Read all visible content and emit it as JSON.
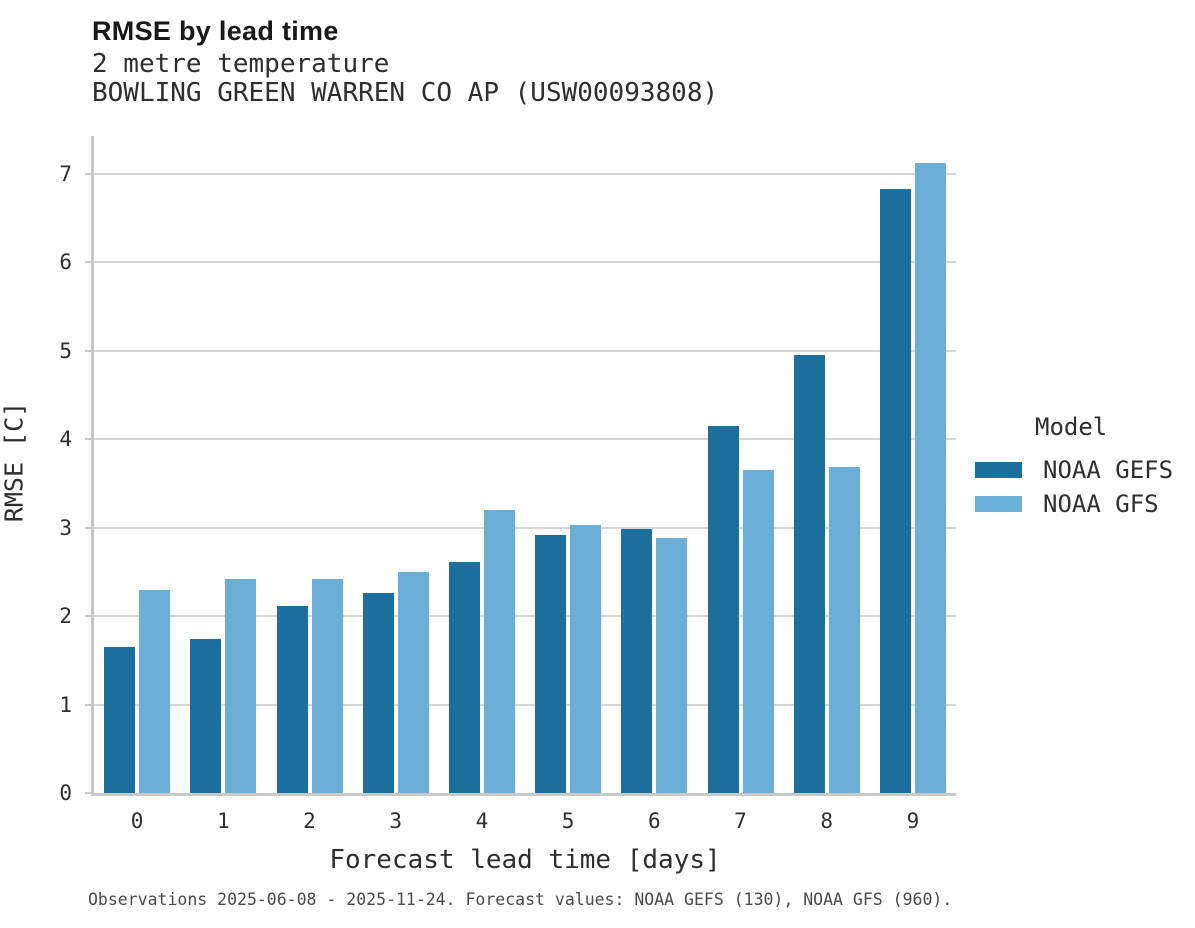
{
  "header": {
    "title": "RMSE by lead time",
    "subtitle_line1": "2 metre temperature",
    "subtitle_line2": "BOWLING GREEN WARREN CO AP (USW00093808)"
  },
  "chart_data": {
    "type": "bar",
    "title": "RMSE by lead time",
    "subtitle": [
      "2 metre temperature",
      "BOWLING GREEN WARREN CO AP (USW00093808)"
    ],
    "categories": [
      "0",
      "1",
      "2",
      "3",
      "4",
      "5",
      "6",
      "7",
      "8",
      "9"
    ],
    "series": [
      {
        "name": "NOAA GEFS",
        "color": "#1d6f9e",
        "values": [
          1.65,
          1.74,
          2.11,
          2.26,
          2.61,
          2.92,
          2.99,
          4.15,
          4.95,
          6.83
        ]
      },
      {
        "name": "NOAA GFS",
        "color": "#6bafd7",
        "values": [
          2.3,
          2.42,
          2.42,
          2.5,
          3.2,
          3.03,
          2.88,
          3.65,
          3.69,
          7.12
        ]
      }
    ],
    "xlabel": "Forecast lead time [days]",
    "ylabel": "RMSE [C]",
    "ylim": [
      0,
      7.43
    ],
    "yticks": [
      0,
      1,
      2,
      3,
      4,
      5,
      6,
      7
    ],
    "grid": "horizontal",
    "legend": {
      "title": "Model",
      "position": "right"
    }
  },
  "footer": {
    "caption": "Observations 2025-06-08 - 2025-11-24. Forecast values: NOAA GEFS (130), NOAA GFS (960)."
  },
  "colors": {
    "gefs_dark_blue": "#1d6f9e",
    "gfs_light_blue": "#6bafd7",
    "gridline_gray": "#d5d5d5",
    "spine_gray": "#c8c8c8",
    "text_dark": "#2e2e2e",
    "caption_gray": "#4a4a4a"
  }
}
